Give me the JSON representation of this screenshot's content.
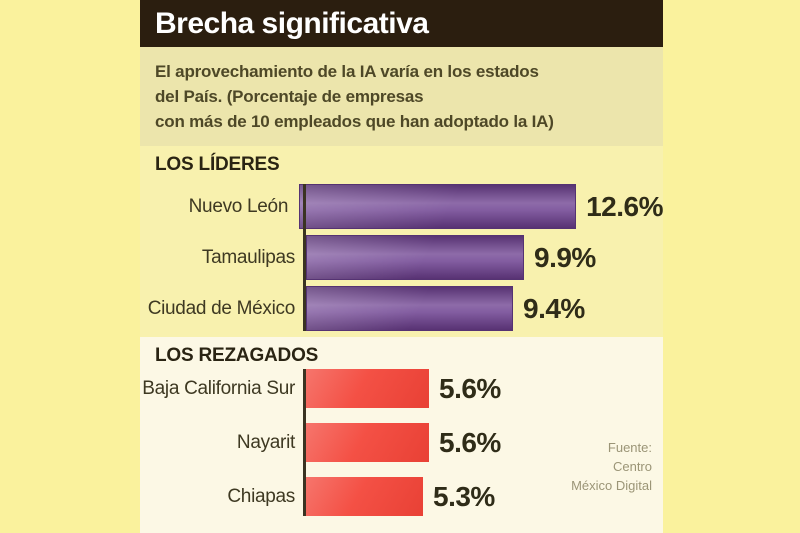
{
  "header": {
    "title": "Brecha significativa"
  },
  "subtitle": {
    "line1": "El aprovechamiento de la IA varía en los estados",
    "line2": "del País. (Porcentaje de empresas",
    "line3": "con más de 10 empleados que han adoptado la IA)"
  },
  "source": {
    "line1": "Fuente:",
    "line2": "Centro",
    "line3": "México Digital"
  },
  "colors": {
    "page_bg": "#FAF29D",
    "title_bar_bg": "#2B1E0F",
    "subtitle_bg": "#ECE5AC",
    "leaders_section_bg": "#F8F1AE",
    "laggards_section_bg": "#FCF8E5",
    "leader_bar": "#7B539B",
    "laggard_bar": "#F3473B",
    "axis": "#3A3322",
    "value_text": "#2F2C18"
  },
  "chart_data": {
    "type": "bar",
    "orientation": "horizontal",
    "title": "Brecha significativa",
    "subtitle": "El aprovechamiento de la IA varía en los estados del País. (Porcentaje de empresas con más de 10 empleados que han adoptado la IA)",
    "unit": "%",
    "xlim": [
      0,
      14
    ],
    "grid": false,
    "legend": false,
    "sections": [
      {
        "heading": "LOS LÍDERES",
        "bar_color": "#7B539B",
        "rows": [
          {
            "label": "Nuevo León",
            "value": 12.6,
            "value_display": "12.6%"
          },
          {
            "label": "Tamaulipas",
            "value": 9.9,
            "value_display": "9.9%"
          },
          {
            "label": "Ciudad de México",
            "value": 9.4,
            "value_display": "9.4%"
          }
        ]
      },
      {
        "heading": "LOS REZAGADOS",
        "bar_color": "#F3473B",
        "rows": [
          {
            "label": "Baja California Sur",
            "value": 5.6,
            "value_display": "5.6%"
          },
          {
            "label": "Nayarit",
            "value": 5.6,
            "value_display": "5.6%"
          },
          {
            "label": "Chiapas",
            "value": 5.3,
            "value_display": "5.3%"
          }
        ]
      }
    ],
    "source": "Fuente: Centro México Digital"
  }
}
